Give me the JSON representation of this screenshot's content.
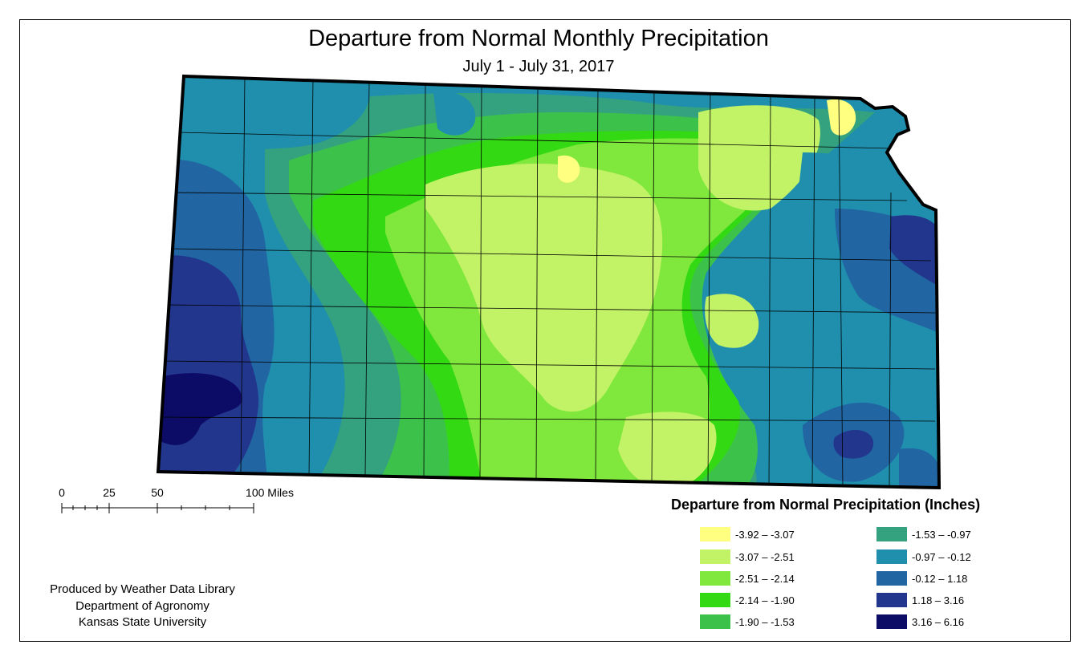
{
  "map": {
    "title": "Departure from Normal Monthly Precipitation",
    "subtitle": "July 1 - July 31, 2017"
  },
  "scale_bar": {
    "labels": [
      "0",
      "25",
      "50",
      "100 Miles"
    ]
  },
  "credits": [
    "Produced by Weather Data Library",
    "Department of Agronomy",
    "Kansas State University"
  ],
  "legend": {
    "title": "Departure from Normal Precipitation (Inches)",
    "classes": [
      {
        "label": "-3.92 – -3.07",
        "color": "#ffff80"
      },
      {
        "label": "-3.07 – -2.51",
        "color": "#c2f266"
      },
      {
        "label": "-2.51 – -2.14",
        "color": "#80e83c"
      },
      {
        "label": "-2.14 – -1.90",
        "color": "#33d912"
      },
      {
        "label": "-1.90 – -1.53",
        "color": "#3cc24a"
      },
      {
        "label": "-1.53 – -0.97",
        "color": "#34a27e"
      },
      {
        "label": "-0.97 – -0.12",
        "color": "#1f8fad"
      },
      {
        "label": "-0.12 – 1.18",
        "color": "#2166a3"
      },
      {
        "label": "1.18 – 3.16",
        "color": "#21368c"
      },
      {
        "label": "3.16 – 6.16",
        "color": "#0c0c66"
      }
    ]
  }
}
